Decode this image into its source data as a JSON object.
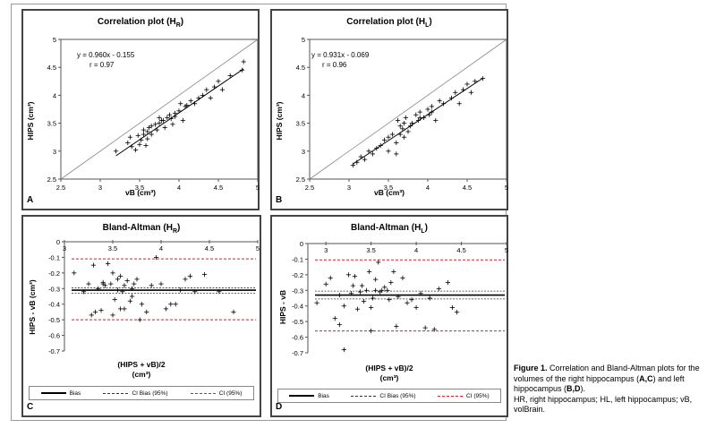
{
  "caption": {
    "figure_label": "Figure 1.",
    "text1": " Correlation and Bland-Altman plots for the volumes of the right hippocampus (",
    "ac": "A,C",
    "text2": ") and left hippocampus (",
    "bd": "B,D",
    "text3": ").",
    "line2": "HR, right hippocampus; HL, left hippocampus; vB, volBrain."
  },
  "colors": {
    "bias": "#000000",
    "ci_bias": "#333333",
    "ci": "#e01f1f",
    "identity": "#888888"
  },
  "legend": {
    "bias": "Bias",
    "ci_bias": "CI Bias (95%)",
    "ci": "CI (95%)"
  },
  "chart_data": [
    {
      "id": "A",
      "type": "scatter",
      "title": "Correlation plot (H",
      "title_sub": "R",
      "title_end": ")",
      "xlabel": "vB (cm³)",
      "ylabel": "HIPS (cm³)",
      "xlim": [
        2.5,
        5
      ],
      "ylim": [
        2.5,
        5
      ],
      "xticks": [
        "2.5",
        "3",
        "3.5",
        "4",
        "4.5",
        "5"
      ],
      "yticks": [
        "2.5",
        "3",
        "3.5",
        "4",
        "4.5",
        "5"
      ],
      "equation": "y = 0.960x - 0.155",
      "r": "r = 0.97",
      "fit": {
        "slope": 0.96,
        "intercept": -0.155
      },
      "identity_line": true,
      "x": [
        3.2,
        3.35,
        3.38,
        3.45,
        3.48,
        3.5,
        3.52,
        3.55,
        3.55,
        3.58,
        3.6,
        3.62,
        3.65,
        3.65,
        3.7,
        3.72,
        3.75,
        3.78,
        3.8,
        3.82,
        3.85,
        3.88,
        3.9,
        3.92,
        3.95,
        4.0,
        4.02,
        4.05,
        4.08,
        4.1,
        4.15,
        4.2,
        4.25,
        4.3,
        4.35,
        4.4,
        4.45,
        4.5,
        4.55,
        4.65,
        4.8,
        4.82,
        3.4,
        3.6,
        3.75,
        3.95
      ],
      "y": [
        3.0,
        3.15,
        3.25,
        3.02,
        3.28,
        3.12,
        3.2,
        3.3,
        3.38,
        3.1,
        3.35,
        3.42,
        3.3,
        3.45,
        3.48,
        3.38,
        3.5,
        3.55,
        3.55,
        3.42,
        3.6,
        3.65,
        3.58,
        3.48,
        3.68,
        3.72,
        3.85,
        3.55,
        3.8,
        3.82,
        3.9,
        3.85,
        3.95,
        4.0,
        4.1,
        3.95,
        4.15,
        4.25,
        4.1,
        4.35,
        4.45,
        4.6,
        3.08,
        3.22,
        3.6,
        3.62
      ]
    },
    {
      "id": "B",
      "type": "scatter",
      "title": "Correlation plot (H",
      "title_sub": "L",
      "title_end": ")",
      "xlabel": "vB (cm³)",
      "ylabel": "HIPS (cm³)",
      "xlim": [
        2.5,
        5
      ],
      "ylim": [
        2.5,
        5
      ],
      "xticks": [
        "2.5",
        "3",
        "3.5",
        "4",
        "4.5",
        "5"
      ],
      "yticks": [
        "2.5",
        "3",
        "3.5",
        "4",
        "4.5",
        "5"
      ],
      "equation": "y = 0.931x - 0.069",
      "r": "r = 0.96",
      "fit": {
        "slope": 0.931,
        "intercept": -0.069
      },
      "identity_line": true,
      "x": [
        3.05,
        3.1,
        3.15,
        3.2,
        3.3,
        3.35,
        3.4,
        3.45,
        3.5,
        3.55,
        3.6,
        3.6,
        3.62,
        3.65,
        3.68,
        3.7,
        3.72,
        3.75,
        3.78,
        3.8,
        3.85,
        3.88,
        3.9,
        3.95,
        4.0,
        4.02,
        4.05,
        4.1,
        4.15,
        4.2,
        4.3,
        4.35,
        4.4,
        4.45,
        4.5,
        4.55,
        4.6,
        4.7,
        3.25,
        3.5,
        3.7,
        3.9,
        4.05,
        3.65
      ],
      "y": [
        2.75,
        2.8,
        2.9,
        2.85,
        2.95,
        3.05,
        3.1,
        3.2,
        3.0,
        3.3,
        2.95,
        3.15,
        3.55,
        3.3,
        3.4,
        3.5,
        3.6,
        3.35,
        3.45,
        3.5,
        3.65,
        3.55,
        3.7,
        3.6,
        3.75,
        3.65,
        3.8,
        3.55,
        3.9,
        3.85,
        3.95,
        4.05,
        3.85,
        4.1,
        4.2,
        4.05,
        4.25,
        4.3,
        3.0,
        3.25,
        3.25,
        3.6,
        3.7,
        3.45
      ]
    },
    {
      "id": "C",
      "type": "scatter",
      "title": "Bland-Altman (H",
      "title_sub": "R",
      "title_end": ")",
      "xlabel": "(HIPS + vB)/2",
      "xlabel2": "(cm³)",
      "ylabel": "HIPS - vB (cm³)",
      "xlim": [
        3,
        5
      ],
      "ylim": [
        -0.7,
        0
      ],
      "xticks": [
        "3",
        "3.5",
        "4",
        "4.5",
        "5"
      ],
      "yticks": [
        "0",
        "-0.1",
        "-0.2",
        "-0.3",
        "-0.4",
        "-0.5",
        "-0.6",
        "-0.7"
      ],
      "bias": -0.31,
      "ci_bias": [
        -0.295,
        -0.33
      ],
      "ci": [
        -0.11,
        -0.5
      ],
      "x": [
        3.1,
        3.2,
        3.25,
        3.3,
        3.32,
        3.35,
        3.38,
        3.4,
        3.42,
        3.45,
        3.48,
        3.5,
        3.5,
        3.52,
        3.55,
        3.55,
        3.58,
        3.6,
        3.62,
        3.62,
        3.65,
        3.68,
        3.7,
        3.72,
        3.75,
        3.78,
        3.8,
        3.85,
        3.9,
        3.95,
        4.0,
        4.05,
        4.1,
        4.15,
        4.2,
        4.25,
        4.3,
        4.35,
        4.45,
        4.6,
        4.75,
        3.28,
        3.4,
        3.58,
        3.7
      ],
      "y": [
        -0.2,
        -0.32,
        -0.27,
        -0.15,
        -0.45,
        -0.3,
        -0.44,
        -0.27,
        -0.28,
        -0.14,
        -0.27,
        -0.47,
        -0.2,
        -0.37,
        -0.31,
        -0.24,
        -0.22,
        -0.32,
        -0.28,
        -0.43,
        -0.25,
        -0.38,
        -0.3,
        -0.27,
        -0.24,
        -0.5,
        -0.4,
        -0.45,
        -0.28,
        -0.1,
        -0.27,
        -0.43,
        -0.4,
        -0.4,
        -0.31,
        -0.24,
        -0.22,
        -0.32,
        -0.21,
        -0.32,
        -0.45,
        -0.47,
        -0.26,
        -0.43,
        -0.35
      ]
    },
    {
      "id": "D",
      "type": "scatter",
      "title": "Bland-Altman (H",
      "title_sub": "L",
      "title_end": ")",
      "xlabel": "(HIPS + vB)/2",
      "xlabel2": "(cm³)",
      "ylabel": "HIPS - vB",
      "xlim": [
        2.8,
        5
      ],
      "ylim": [
        -0.7,
        0
      ],
      "xticks": [
        "3",
        "3.5",
        "4",
        "4.5",
        "5"
      ],
      "yticks": [
        "0",
        "-0.1",
        "-0.2",
        "-0.3",
        "-0.4",
        "-0.5",
        "-0.6",
        "-0.7"
      ],
      "bias": -0.33,
      "ci_bias": [
        -0.305,
        -0.355
      ],
      "ci": [
        -0.105,
        -0.56
      ],
      "x": [
        2.9,
        3.0,
        3.05,
        3.1,
        3.15,
        3.2,
        3.2,
        3.25,
        3.28,
        3.3,
        3.32,
        3.35,
        3.38,
        3.4,
        3.42,
        3.45,
        3.48,
        3.5,
        3.5,
        3.52,
        3.55,
        3.58,
        3.6,
        3.62,
        3.65,
        3.68,
        3.7,
        3.72,
        3.75,
        3.78,
        3.8,
        3.85,
        3.9,
        3.95,
        4.0,
        4.05,
        4.1,
        4.15,
        4.2,
        4.25,
        4.35,
        4.4,
        4.45,
        3.15,
        3.55
      ],
      "y": [
        -0.38,
        -0.26,
        -0.22,
        -0.48,
        -0.33,
        -0.4,
        -0.68,
        -0.2,
        -0.32,
        -0.27,
        -0.21,
        -0.42,
        -0.31,
        -0.27,
        -0.37,
        -0.3,
        -0.18,
        -0.41,
        -0.56,
        -0.35,
        -0.23,
        -0.12,
        -0.31,
        -0.3,
        -0.28,
        -0.3,
        -0.36,
        -0.25,
        -0.18,
        -0.53,
        -0.34,
        -0.22,
        -0.38,
        -0.36,
        -0.41,
        -0.32,
        -0.54,
        -0.35,
        -0.55,
        -0.29,
        -0.25,
        -0.41,
        -0.44,
        -0.52,
        -0.3
      ]
    }
  ]
}
